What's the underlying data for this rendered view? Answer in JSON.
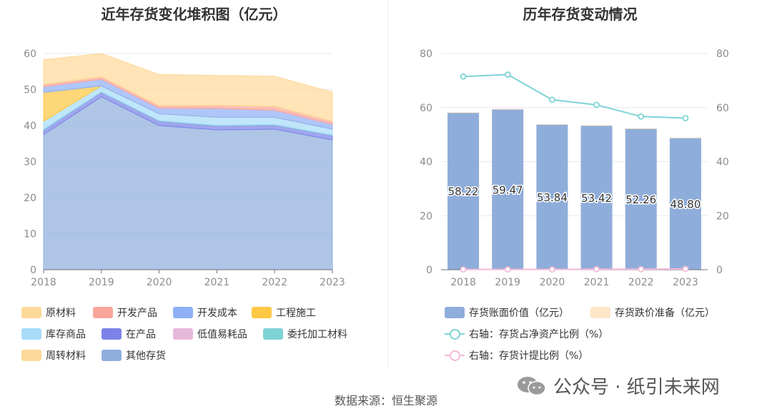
{
  "left_chart": {
    "title": "近年存货变化堆积图（亿元）",
    "legend": [
      "原材料",
      "开发产品",
      "开发成本",
      "工程施工",
      "库存商品",
      "在产品",
      "低值易耗品",
      "委托加工材料",
      "周转材料",
      "其他存货"
    ]
  },
  "right_chart": {
    "title": "历年存货变动情况",
    "legend": [
      "存货账面价值（亿元）",
      "存货跌价准备（亿元）",
      "右轴：存货占净资产比例（%）",
      "右轴：存货计提比例（%）"
    ]
  },
  "footer": {
    "source": "数据来源：恒生聚源",
    "watermark": "公众号 · 纸引未来网"
  },
  "colors": {
    "raw_material": "#fdd99a",
    "dev_product": "#f9a59a",
    "dev_cost": "#8fb0f5",
    "construction": "#fdc844",
    "goods": "#a8dcf8",
    "wip": "#7b83e6",
    "low_value": "#e6b9dc",
    "consigned": "#7ed3d6",
    "turnover": "#fdd99a",
    "other": "#8faedc",
    "bar_book": "#8fadda",
    "bar_reserve": "#fde6c6",
    "line_ratio": "#7ed3d6",
    "line_provision": "#f3b9d8"
  },
  "chart_data": [
    {
      "type": "area",
      "stacked": true,
      "title": "近年存货变化堆积图（亿元）",
      "categories": [
        "2018",
        "2019",
        "2020",
        "2021",
        "2022",
        "2023"
      ],
      "ylim": [
        0,
        60
      ],
      "yticks": [
        0,
        10,
        20,
        30,
        40,
        50,
        60
      ],
      "legend_position": "bottom",
      "grid": true,
      "series": [
        {
          "name": "其他存货",
          "values": [
            37.5,
            48.0,
            40.0,
            38.8,
            39.0,
            36.0
          ]
        },
        {
          "name": "在产品",
          "values": [
            1.3,
            1.3,
            1.3,
            1.2,
            1.2,
            1.3
          ]
        },
        {
          "name": "委托加工材料",
          "values": [
            0.2,
            0.1,
            0.1,
            0.1,
            0.1,
            0.1
          ]
        },
        {
          "name": "库存商品",
          "values": [
            2.2,
            1.6,
            1.9,
            2.2,
            2.0,
            1.6
          ]
        },
        {
          "name": "工程施工",
          "values": [
            8.0,
            0.0,
            0.0,
            0.0,
            0.0,
            0.0
          ]
        },
        {
          "name": "开发成本",
          "values": [
            1.5,
            1.8,
            1.5,
            2.4,
            1.9,
            1.3
          ]
        },
        {
          "name": "低值易耗品",
          "values": [
            0.1,
            0.1,
            0.1,
            0.1,
            0.1,
            0.1
          ]
        },
        {
          "name": "开发产品",
          "values": [
            0.6,
            0.6,
            0.6,
            0.8,
            1.0,
            0.8
          ]
        },
        {
          "name": "周转材料",
          "values": [
            0.1,
            0.1,
            0.1,
            0.1,
            0.1,
            0.1
          ]
        },
        {
          "name": "原材料",
          "values": [
            6.8,
            6.4,
            8.6,
            8.2,
            8.3,
            8.0
          ]
        }
      ]
    },
    {
      "type": "bar",
      "title": "历年存货变动情况",
      "categories": [
        "2018",
        "2019",
        "2020",
        "2021",
        "2022",
        "2023"
      ],
      "ylim": [
        0,
        80
      ],
      "yticks": [
        0,
        20,
        40,
        60,
        80
      ],
      "y2lim": [
        0,
        80
      ],
      "y2ticks": [
        0,
        20,
        40,
        60,
        80
      ],
      "legend_position": "bottom",
      "bar_labels": [
        "58.22",
        "59.47",
        "53.84",
        "53.42",
        "52.26",
        "48.80"
      ],
      "series": [
        {
          "name": "存货账面价值（亿元）",
          "type": "bar",
          "values": [
            58.22,
            59.47,
            53.84,
            53.42,
            52.26,
            48.8
          ]
        },
        {
          "name": "存货跌价准备（亿元）",
          "type": "bar",
          "values": [
            0.05,
            0.05,
            0.05,
            0.08,
            0.1,
            0.12
          ]
        },
        {
          "name": "右轴：存货占净资产比例（%）",
          "type": "line",
          "axis": "right",
          "values": [
            71.5,
            72.2,
            62.9,
            61.0,
            56.7,
            56.1
          ]
        },
        {
          "name": "右轴：存货计提比例（%）",
          "type": "line",
          "axis": "right",
          "values": [
            0.1,
            0.1,
            0.1,
            0.2,
            0.2,
            0.3
          ]
        }
      ]
    }
  ]
}
